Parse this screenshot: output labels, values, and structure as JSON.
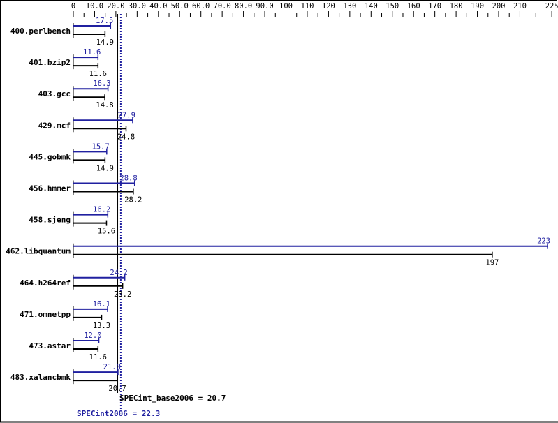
{
  "chart_data": {
    "type": "bar",
    "orientation": "horizontal",
    "categories": [
      "400.perlbench",
      "401.bzip2",
      "403.gcc",
      "429.mcf",
      "445.gobmk",
      "456.hmmer",
      "458.sjeng",
      "462.libquantum",
      "464.h264ref",
      "471.omnetpp",
      "473.astar",
      "483.xalancbmk"
    ],
    "series": [
      {
        "name": "SPECint2006",
        "color": "#2020a0",
        "values": [
          17.5,
          11.6,
          16.3,
          27.9,
          15.7,
          28.8,
          16.2,
          223,
          24.2,
          16.1,
          12.0,
          21.0
        ],
        "labels": [
          "17.5",
          "11.6",
          "16.3",
          "27.9",
          "15.7",
          "28.8",
          "16.2",
          "223",
          "24.2",
          "16.1",
          "12.0",
          "21.0"
        ]
      },
      {
        "name": "SPECint_base2006",
        "color": "#000000",
        "values": [
          14.9,
          11.6,
          14.8,
          24.8,
          14.9,
          28.2,
          15.6,
          197,
          23.2,
          13.3,
          11.6,
          20.7
        ],
        "labels": [
          "14.9",
          "11.6",
          "14.8",
          "24.8",
          "14.9",
          "28.2",
          "15.6",
          "197",
          "23.2",
          "13.3",
          "11.6",
          "20.7"
        ]
      }
    ],
    "xlim": [
      0,
      225
    ],
    "xticks": [
      "0",
      "10.0",
      "20.0",
      "30.0",
      "40.0",
      "50.0",
      "60.0",
      "70.0",
      "80.0",
      "90.0",
      "100",
      "110",
      "120",
      "130",
      "140",
      "150",
      "160",
      "170",
      "180",
      "190",
      "200",
      "210",
      "225"
    ],
    "xtick_values": [
      0,
      10,
      20,
      30,
      40,
      50,
      60,
      70,
      80,
      90,
      100,
      110,
      120,
      130,
      140,
      150,
      160,
      170,
      180,
      190,
      200,
      210,
      225
    ],
    "reference_lines": [
      {
        "label": "SPECint_base2006 = 20.7",
        "value": 20.7,
        "color": "#000000",
        "style": "solid"
      },
      {
        "label": "SPECint2006 = 22.3",
        "value": 22.3,
        "color": "#2020a0",
        "style": "dotted"
      }
    ],
    "axis_position": "top",
    "grid": false
  }
}
